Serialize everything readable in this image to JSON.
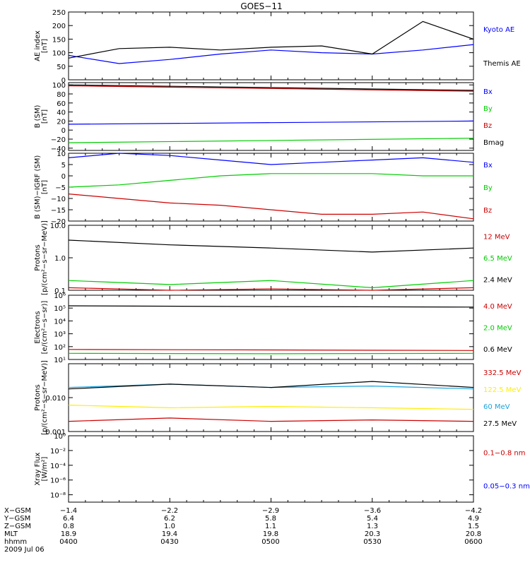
{
  "title": "GOES−11",
  "colors": {
    "black": "#000000",
    "blue": "#0000ff",
    "green": "#00cc00",
    "red": "#cc0000",
    "yellow": "#ffee00",
    "cyan": "#1ca3dd"
  },
  "x_axis": {
    "rows": [
      {
        "label": "X−GSM",
        "values": [
          "−1.4",
          "−2.2",
          "−2.9",
          "−3.6",
          "−4.2"
        ]
      },
      {
        "label": "Y−GSM",
        "values": [
          "6.4",
          "6.2",
          "5.8",
          "5.4",
          "4.9"
        ]
      },
      {
        "label": "Z−GSM",
        "values": [
          "0.8",
          "1.0",
          "1.1",
          "1.3",
          "1.5"
        ]
      },
      {
        "label": "MLT",
        "values": [
          "18.9",
          "19.4",
          "19.8",
          "20.3",
          "20.8"
        ]
      },
      {
        "label": "hhmm",
        "values": [
          "0400",
          "0430",
          "0500",
          "0530",
          "0600"
        ]
      }
    ],
    "date": "2009 Jul 06"
  },
  "chart_data": [
    {
      "type": "line",
      "ylabel": "AE index\n[nT]",
      "ylim": [
        0,
        250
      ],
      "ticks": [
        "0",
        "50",
        "100",
        "150",
        "200",
        "250"
      ],
      "tick_values": [
        0,
        50,
        100,
        150,
        200,
        250
      ],
      "x_hours": [
        4.0,
        4.25,
        4.5,
        4.75,
        5.0,
        5.25,
        5.5,
        5.75,
        6.0
      ],
      "series": [
        {
          "name": "Kyoto AE",
          "color": "blue",
          "values": [
            90,
            60,
            75,
            95,
            110,
            100,
            95,
            110,
            130
          ]
        },
        {
          "name": "Themis AE",
          "color": "black",
          "values": [
            80,
            115,
            120,
            110,
            120,
            125,
            95,
            215,
            150
          ]
        }
      ]
    },
    {
      "type": "line",
      "ylabel": "B (SM)\n[nT]",
      "ylim": [
        -45,
        105
      ],
      "ticks": [
        "−40",
        "−20",
        "0",
        "20",
        "40",
        "60",
        "80",
        "100"
      ],
      "tick_values": [
        -40,
        -20,
        0,
        20,
        40,
        60,
        80,
        100
      ],
      "x_hours": [
        4.0,
        6.0
      ],
      "series": [
        {
          "name": "Bx",
          "color": "blue",
          "values": [
            13,
            20
          ]
        },
        {
          "name": "By",
          "color": "green",
          "values": [
            -28,
            -18
          ]
        },
        {
          "name": "Bz",
          "color": "red",
          "values": [
            98,
            86
          ]
        },
        {
          "name": "Bmag",
          "color": "black",
          "values": [
            100,
            88
          ]
        }
      ]
    },
    {
      "type": "line",
      "ylabel": "B (SM)−IGRF (SM)\n[nT]",
      "ylim": [
        -20,
        10
      ],
      "ticks": [
        "−20",
        "−15",
        "−10",
        "−5",
        "0",
        "5",
        "10"
      ],
      "tick_values": [
        -20,
        -15,
        -10,
        -5,
        0,
        5,
        10
      ],
      "x_hours": [
        4.0,
        4.25,
        4.5,
        4.75,
        5.0,
        5.25,
        5.5,
        5.75,
        6.0
      ],
      "series": [
        {
          "name": "Bx",
          "color": "blue",
          "values": [
            8,
            10,
            9,
            7,
            5,
            6,
            7,
            8,
            6
          ]
        },
        {
          "name": "By",
          "color": "green",
          "values": [
            -5,
            -4,
            -2,
            0,
            1,
            1,
            1,
            0,
            0
          ]
        },
        {
          "name": "Bz",
          "color": "red",
          "values": [
            -8,
            -10,
            -12,
            -13,
            -15,
            -17,
            -17,
            -16,
            -19
          ]
        }
      ]
    },
    {
      "type": "line",
      "ylabel": "Protons\n[p/(cm²−s−sr−MeV)]",
      "scale": "log",
      "ylim": [
        0.1,
        10
      ],
      "ticks": [
        "0.1",
        "1.0",
        "10.0"
      ],
      "tick_values": [
        0.1,
        1,
        10
      ],
      "x_hours": [
        4.0,
        4.5,
        5.0,
        5.5,
        6.0
      ],
      "series": [
        {
          "name": "12 MeV",
          "color": "red",
          "values": [
            0.12,
            0.1,
            0.11,
            0.1,
            0.12
          ]
        },
        {
          "name": "6.5 MeV",
          "color": "green",
          "values": [
            0.2,
            0.15,
            0.2,
            0.12,
            0.2
          ]
        },
        {
          "name": "2.4 MeV",
          "color": "black",
          "values": [
            3.5,
            2.5,
            2.0,
            1.5,
            2.0
          ]
        }
      ]
    },
    {
      "type": "line",
      "ylabel": "Electrons\n[e/(cm²−s−sr)]",
      "scale": "log",
      "ylim": [
        10,
        1000000
      ],
      "ticks": [
        "10¹",
        "10²",
        "10³",
        "10⁴",
        "10⁵",
        "10⁶"
      ],
      "tick_values": [
        10,
        100,
        1000,
        10000,
        100000,
        1000000
      ],
      "x_hours": [
        4.0,
        5.0,
        6.0
      ],
      "series": [
        {
          "name": "4.0 MeV",
          "color": "red",
          "values": [
            60,
            55,
            50
          ]
        },
        {
          "name": "2.0 MeV",
          "color": "green",
          "values": [
            30,
            28,
            30
          ]
        },
        {
          "name": "0.6 MeV",
          "color": "black",
          "values": [
            150000,
            130000,
            120000
          ]
        }
      ]
    },
    {
      "type": "line",
      "ylabel": "Protons\n[p/(cm²−s−sr−MeV)]",
      "scale": "log",
      "ylim": [
        0.001,
        0.1
      ],
      "ticks": [
        "0.001",
        "0.010"
      ],
      "tick_values": [
        0.001,
        0.01
      ],
      "x_hours": [
        4.0,
        4.5,
        5.0,
        5.5,
        6.0
      ],
      "series": [
        {
          "name": "332.5 MeV",
          "color": "red",
          "values": [
            0.002,
            0.0025,
            0.002,
            0.0022,
            0.002
          ]
        },
        {
          "name": "122.5 MeV",
          "color": "yellow",
          "values": [
            0.006,
            0.005,
            0.0055,
            0.005,
            0.0045
          ]
        },
        {
          "name": "60 MeV",
          "color": "cyan",
          "values": [
            0.02,
            0.025,
            0.02,
            0.022,
            0.018
          ]
        },
        {
          "name": "27.5 MeV",
          "color": "black",
          "values": [
            0.018,
            0.025,
            0.02,
            0.03,
            0.02
          ]
        }
      ]
    },
    {
      "type": "line",
      "ylabel": "Xray Flux\n[W/m²]",
      "scale": "log",
      "ylim": [
        1e-09,
        1
      ],
      "ticks": [
        "10⁻⁸",
        "10⁻⁶",
        "10⁻⁴",
        "10⁻²",
        "10⁰"
      ],
      "tick_values": [
        1e-08,
        1e-06,
        0.0001,
        0.01,
        1
      ],
      "x_hours": [],
      "series": [
        {
          "name": "0.1−0.8 nm",
          "color": "red",
          "values": []
        },
        {
          "name": "0.05−0.3 nm",
          "color": "blue",
          "values": []
        }
      ]
    }
  ]
}
